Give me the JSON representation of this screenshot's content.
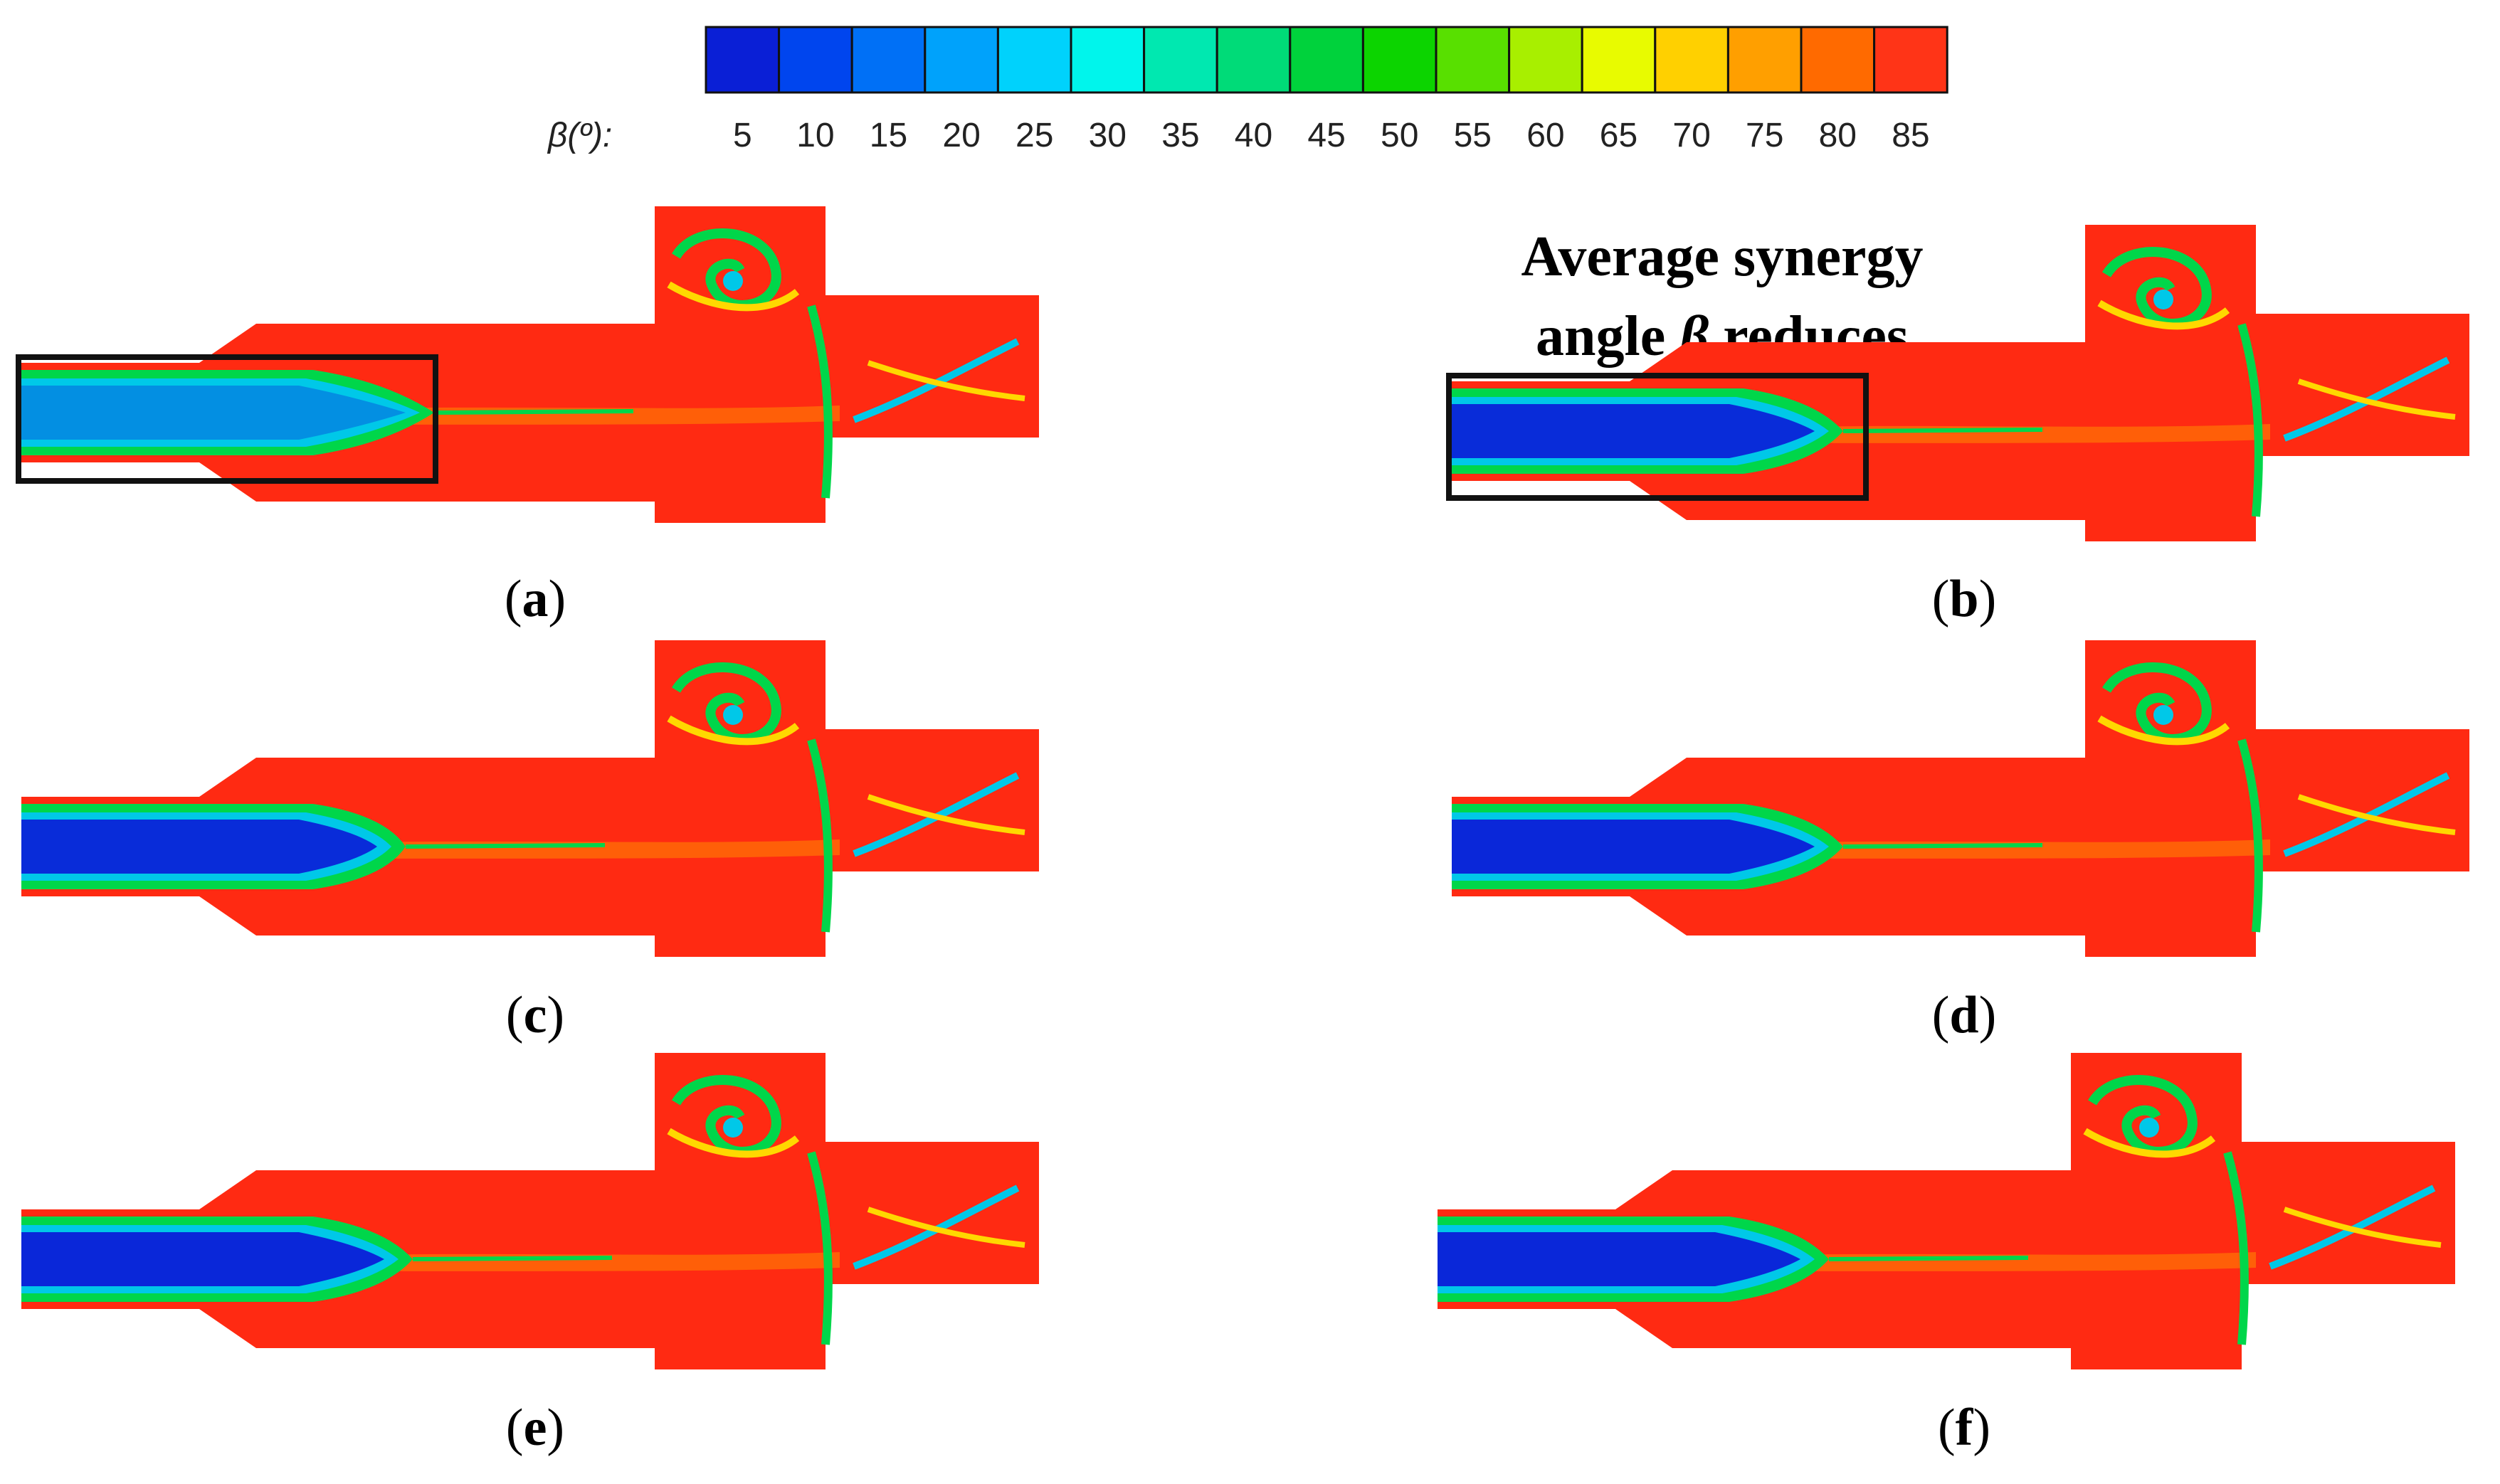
{
  "figure": {
    "colorbar": {
      "label": "β(º):",
      "ticks": [
        "5",
        "10",
        "15",
        "20",
        "25",
        "30",
        "35",
        "40",
        "45",
        "50",
        "55",
        "60",
        "65",
        "70",
        "75",
        "80",
        "85"
      ],
      "colors": [
        "#0a1fd6",
        "#0045ee",
        "#0070f6",
        "#00a2fb",
        "#00d2fc",
        "#00f5ec",
        "#00e8b0",
        "#00db78",
        "#00d23c",
        "#0cd400",
        "#58e000",
        "#a8ef00",
        "#e8fb00",
        "#ffd000",
        "#ff9f00",
        "#ff6a00",
        "#ff3417"
      ]
    },
    "annotation": {
      "line1": "Average synergy",
      "line2_prefix": "angle ",
      "symbol": "β",
      "line2_suffix": " reduces"
    },
    "panels": [
      {
        "id": "a",
        "paren_open": "(",
        "label": "a",
        "paren_close": ")"
      },
      {
        "id": "b",
        "paren_open": "(",
        "label": "b",
        "paren_close": ")"
      },
      {
        "id": "c",
        "paren_open": "(",
        "label": "c",
        "paren_close": ")"
      },
      {
        "id": "d",
        "paren_open": "(",
        "label": "d",
        "paren_close": ")"
      },
      {
        "id": "e",
        "paren_open": "(",
        "label": "e",
        "paren_close": ")"
      },
      {
        "id": "f",
        "paren_open": "(",
        "label": "f",
        "paren_close": ")"
      }
    ],
    "colors": {
      "field_red": "#ff2a12",
      "core_blue": "#0a24d8",
      "mix_green": "#00d64a",
      "mix_cyan": "#00c8e8",
      "mix_yellow": "#ffd800",
      "mix_orange": "#ff8a00",
      "box": "#111111"
    }
  }
}
